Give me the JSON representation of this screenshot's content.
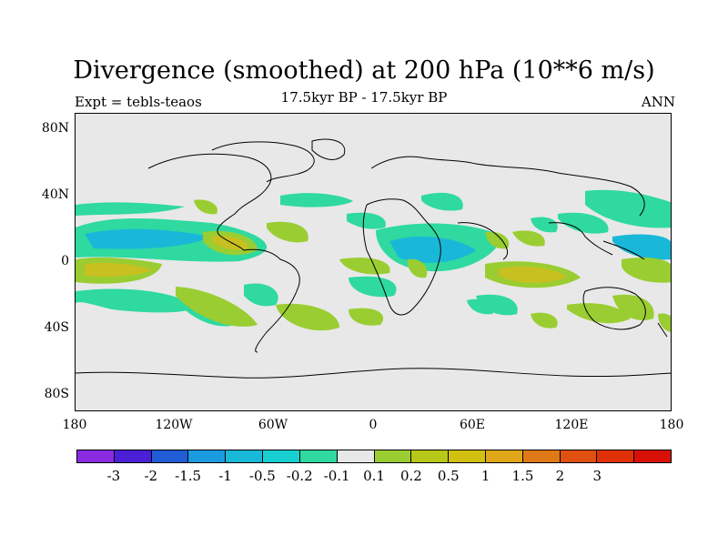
{
  "title": "Divergence (smoothed) at 200 hPa (10**6 m/s)",
  "expt_label": "Expt = tebls-teaos",
  "subtitle": "17.5kyr BP - 17.5kyr BP",
  "season": "ANN",
  "lat_labels": [
    "80N",
    "40N",
    "0",
    "40S",
    "80S"
  ],
  "lon_labels": [
    "180",
    "120W",
    "60W",
    "0",
    "60E",
    "120E",
    "180"
  ],
  "colorbar": {
    "colors": [
      "#8a2be2",
      "#4b1fd6",
      "#1f5cd6",
      "#1a9be0",
      "#19b8d8",
      "#17cfd0",
      "#2fd9a0",
      "#e8e8e8",
      "#9acd32",
      "#b8c818",
      "#d2c010",
      "#e0a818",
      "#e07a18",
      "#e05010",
      "#e03008",
      "#d81008"
    ],
    "labels": [
      "-3",
      "-2",
      "-1.5",
      "-1",
      "-0.5",
      "-0.2",
      "-0.1",
      "0.1",
      "0.2",
      "0.5",
      "1",
      "1.5",
      "2",
      "3"
    ]
  },
  "colors": {
    "background": "#e8e8e8",
    "positive_weak": "#9acd32",
    "positive_mid": "#c8c020",
    "negative_weak": "#2fd9a0",
    "negative_mid": "#19b8d8"
  }
}
